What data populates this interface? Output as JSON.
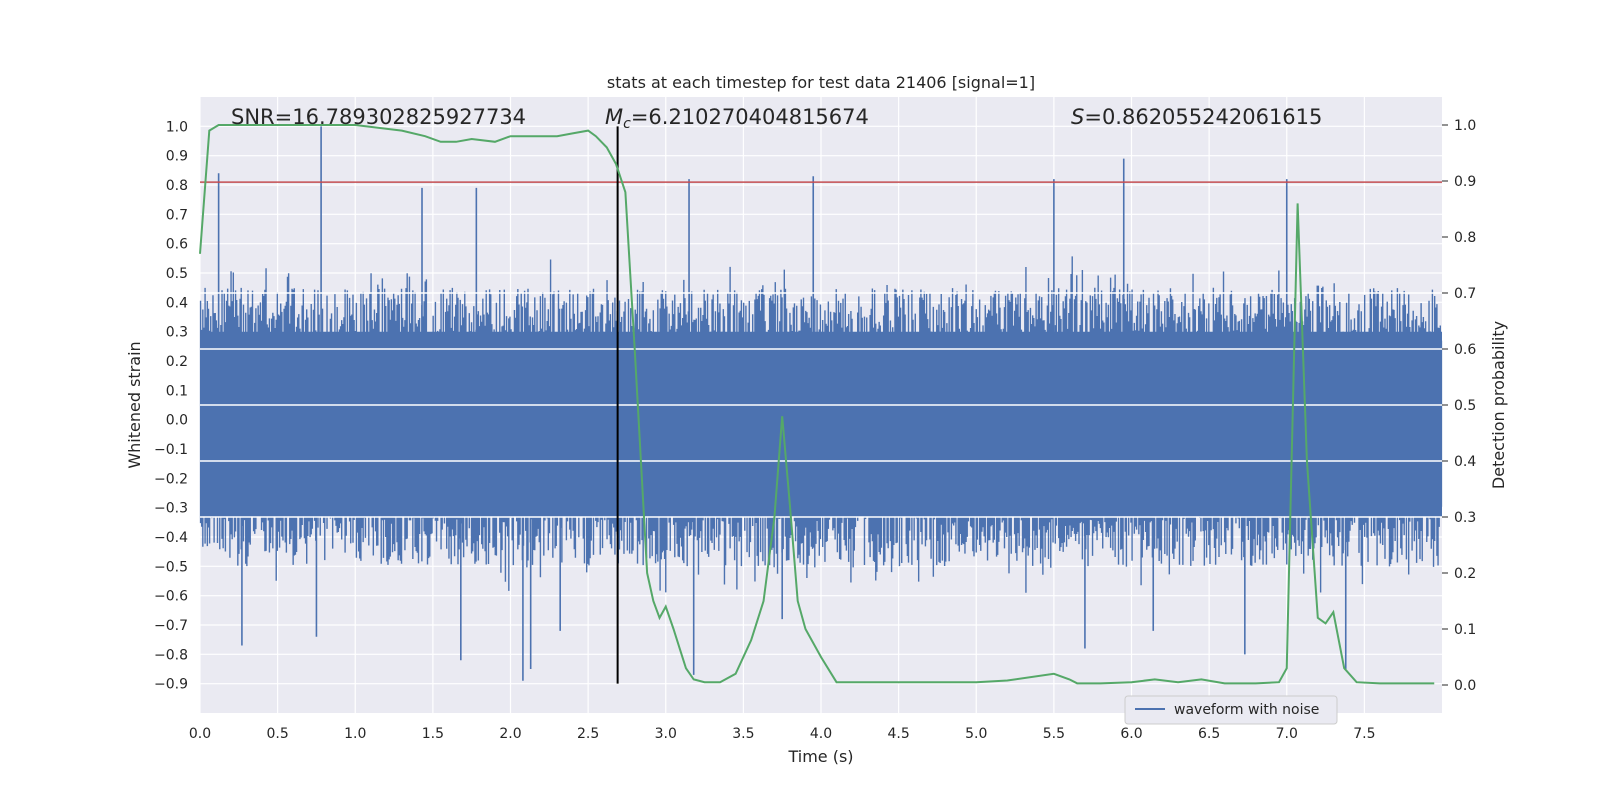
{
  "chart_data": {
    "type": "line",
    "title": "stats at each timestep for test data 21406 [signal=1]",
    "xlabel": "Time (s)",
    "ylabel": "Whitened strain",
    "y2label": "Detection probability",
    "xlim": [
      0.0,
      8.0
    ],
    "ylim": [
      -1.0,
      1.1
    ],
    "y2lim": [
      -0.05,
      1.05
    ],
    "xticks": [
      0.0,
      0.5,
      1.0,
      1.5,
      2.0,
      2.5,
      3.0,
      3.5,
      4.0,
      4.5,
      5.0,
      5.5,
      6.0,
      6.5,
      7.0,
      7.5
    ],
    "xtick_labels": [
      "0.0",
      "0.5",
      "1.0",
      "1.5",
      "2.0",
      "2.5",
      "3.0",
      "3.5",
      "4.0",
      "4.5",
      "5.0",
      "5.5",
      "6.0",
      "6.5",
      "7.0",
      "7.5"
    ],
    "yticks": [
      1.0,
      0.9,
      0.8,
      0.7,
      0.6,
      0.5,
      0.4,
      0.3,
      0.2,
      0.1,
      0.0,
      -0.1,
      -0.2,
      -0.3,
      -0.4,
      -0.5,
      -0.6,
      -0.7,
      -0.8,
      -0.9
    ],
    "ytick_labels": [
      "1.0",
      "0.9",
      "0.8",
      "0.7",
      "0.6",
      "0.5",
      "0.4",
      "0.3",
      "0.2",
      "0.1",
      "0.0",
      "−0.1",
      "−0.2",
      "−0.3",
      "−0.4",
      "−0.5",
      "−0.6",
      "−0.7",
      "−0.8",
      "−0.9"
    ],
    "y2ticks": [
      1.0,
      0.9,
      0.8,
      0.7,
      0.6,
      0.5,
      0.4,
      0.3,
      0.2,
      0.1,
      0.0
    ],
    "y2tick_labels": [
      "1.0",
      "0.9",
      "0.8",
      "0.7",
      "0.6",
      "0.5",
      "0.4",
      "0.3",
      "0.2",
      "0.1",
      "0.0"
    ],
    "grid": true,
    "legend": {
      "placement": "lower-right",
      "entries": [
        "waveform with noise"
      ]
    },
    "annotations": {
      "snr": "SNR=16.789302825927734",
      "mc_symbol": "M",
      "mc_sub": "c",
      "mc_value": "=6.210270404815674",
      "s_symbol": "S",
      "s_value": "=0.862055242061615"
    },
    "threshold": {
      "value": 0.81,
      "color": "#c44e52"
    },
    "merger_time": 2.69,
    "series": [
      {
        "name": "waveform with noise",
        "color": "#4c72b0",
        "style": "noise",
        "envelope_upper_typical": 0.45,
        "envelope_lower_typical": -0.5,
        "spikes": [
          {
            "x": 0.12,
            "y": 0.84
          },
          {
            "x": 0.78,
            "y": 1.0
          },
          {
            "x": 1.43,
            "y": 0.79
          },
          {
            "x": 1.78,
            "y": 0.79
          },
          {
            "x": 3.15,
            "y": 0.82
          },
          {
            "x": 3.95,
            "y": 0.83
          },
          {
            "x": 5.5,
            "y": 0.82
          },
          {
            "x": 5.95,
            "y": 0.89
          },
          {
            "x": 7.0,
            "y": 0.82
          },
          {
            "x": 0.27,
            "y": -0.77
          },
          {
            "x": 1.68,
            "y": -0.82
          },
          {
            "x": 2.08,
            "y": -0.89
          },
          {
            "x": 2.13,
            "y": -0.85
          },
          {
            "x": 3.18,
            "y": -0.87
          },
          {
            "x": 5.7,
            "y": -0.78
          },
          {
            "x": 6.73,
            "y": -0.8
          },
          {
            "x": 7.38,
            "y": -0.85
          },
          {
            "x": 0.75,
            "y": -0.74
          },
          {
            "x": 2.32,
            "y": -0.72
          },
          {
            "x": 3.75,
            "y": -0.68
          },
          {
            "x": 6.14,
            "y": -0.72
          }
        ]
      },
      {
        "name": "",
        "color": "#55a868",
        "axis": "right",
        "x": [
          0.0,
          0.06,
          0.12,
          0.25,
          0.5,
          1.0,
          1.3,
          1.45,
          1.55,
          1.65,
          1.75,
          1.9,
          2.0,
          2.1,
          2.3,
          2.4,
          2.5,
          2.55,
          2.62,
          2.68,
          2.74,
          2.8,
          2.88,
          2.92,
          2.96,
          3.0,
          3.05,
          3.13,
          3.18,
          3.25,
          3.35,
          3.45,
          3.55,
          3.63,
          3.7,
          3.75,
          3.8,
          3.85,
          3.9,
          4.0,
          4.1,
          4.5,
          5.0,
          5.2,
          5.5,
          5.6,
          5.65,
          5.8,
          6.0,
          6.15,
          6.3,
          6.45,
          6.6,
          6.8,
          6.95,
          7.0,
          7.07,
          7.13,
          7.2,
          7.25,
          7.3,
          7.37,
          7.45,
          7.6,
          7.8,
          7.95
        ],
        "y": [
          0.77,
          0.99,
          1.0,
          1.0,
          1.0,
          1.0,
          0.99,
          0.98,
          0.97,
          0.97,
          0.975,
          0.97,
          0.98,
          0.98,
          0.98,
          0.985,
          0.99,
          0.98,
          0.96,
          0.93,
          0.88,
          0.6,
          0.2,
          0.15,
          0.12,
          0.14,
          0.1,
          0.03,
          0.01,
          0.005,
          0.005,
          0.02,
          0.08,
          0.15,
          0.3,
          0.48,
          0.32,
          0.15,
          0.1,
          0.05,
          0.005,
          0.005,
          0.005,
          0.008,
          0.02,
          0.01,
          0.003,
          0.003,
          0.005,
          0.01,
          0.005,
          0.01,
          0.003,
          0.003,
          0.005,
          0.03,
          0.86,
          0.4,
          0.12,
          0.11,
          0.13,
          0.03,
          0.005,
          0.003,
          0.003,
          0.003
        ]
      }
    ]
  }
}
